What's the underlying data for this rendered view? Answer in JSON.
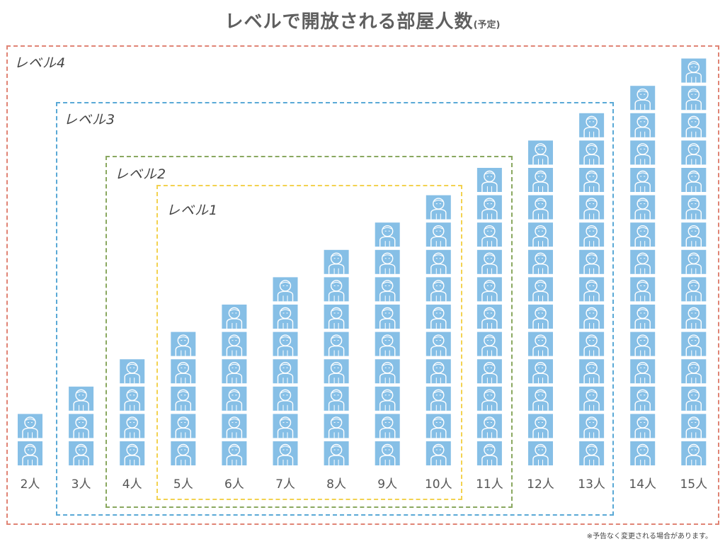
{
  "title": {
    "main": "レベルで開放される部屋人数",
    "sub": "(予定)"
  },
  "footnote": "※予告なく変更される場合があります。",
  "colors": {
    "person_bg": "#86bfe6",
    "person_line": "#ffffff",
    "level1": "#f3d250",
    "level2": "#8aa860",
    "level3": "#5aa9d6",
    "level4": "#e08475",
    "label_text": "#555555"
  },
  "levels": [
    {
      "id": "level1",
      "label": "レベル1"
    },
    {
      "id": "level2",
      "label": "レベル2"
    },
    {
      "id": "level3",
      "label": "レベル3"
    },
    {
      "id": "level4",
      "label": "レベル4"
    }
  ],
  "chart_data": {
    "type": "bar",
    "title": "レベルで開放される部屋人数(予定)",
    "xlabel": "",
    "ylabel": "",
    "categories": [
      "2人",
      "3人",
      "4人",
      "5人",
      "6人",
      "7人",
      "8人",
      "9人",
      "10人",
      "11人",
      "12人",
      "13人",
      "14人",
      "15人"
    ],
    "values": [
      2,
      3,
      4,
      5,
      6,
      7,
      8,
      9,
      10,
      11,
      12,
      13,
      14,
      15
    ],
    "unit": "person-icon",
    "grid": false,
    "groups": [
      {
        "level": "レベル1",
        "categories": [
          "5人",
          "6人",
          "7人",
          "8人",
          "9人",
          "10人"
        ]
      },
      {
        "level": "レベル2",
        "categories": [
          "4人",
          "5人",
          "6人",
          "7人",
          "8人",
          "9人",
          "10人",
          "11人"
        ]
      },
      {
        "level": "レベル3",
        "categories": [
          "3人",
          "4人",
          "5人",
          "6人",
          "7人",
          "8人",
          "9人",
          "10人",
          "11人",
          "12人",
          "13人"
        ]
      },
      {
        "level": "レベル4",
        "categories": [
          "2人",
          "3人",
          "4人",
          "5人",
          "6人",
          "7人",
          "8人",
          "9人",
          "10人",
          "11人",
          "12人",
          "13人",
          "14人",
          "15人"
        ]
      }
    ]
  }
}
